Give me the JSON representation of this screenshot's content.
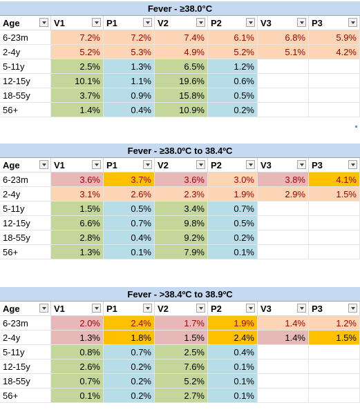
{
  "tables": [
    {
      "title": "Fever - ≥38.0°C",
      "headers": [
        "Age",
        "V1",
        "P1",
        "V2",
        "P2",
        "V3",
        "P3"
      ],
      "rows": [
        {
          "age": "6-23m",
          "values": [
            "7.2%",
            "7.2%",
            "7.4%",
            "6.1%",
            "6.8%",
            "5.9%"
          ],
          "fills": [
            "peach",
            "peach",
            "peach",
            "peach",
            "peach",
            "peach"
          ],
          "text": "red"
        },
        {
          "age": "2-4y",
          "values": [
            "5.2%",
            "5.3%",
            "4.9%",
            "5.2%",
            "5.1%",
            "4.2%"
          ],
          "fills": [
            "peach",
            "peach",
            "peach",
            "peach",
            "peach",
            "peach"
          ],
          "text": "red"
        },
        {
          "age": "5-11y",
          "values": [
            "2.5%",
            "1.3%",
            "6.5%",
            "1.2%",
            "",
            ""
          ],
          "fills": [
            "green",
            "blue",
            "green",
            "blue",
            "white",
            "white"
          ],
          "text": "black"
        },
        {
          "age": "12-15y",
          "values": [
            "10.1%",
            "1.1%",
            "19.6%",
            "0.6%",
            "",
            ""
          ],
          "fills": [
            "green",
            "blue",
            "green",
            "blue",
            "white",
            "white"
          ],
          "text": "black"
        },
        {
          "age": "18-55y",
          "values": [
            "3.7%",
            "0.9%",
            "15.8%",
            "0.5%",
            "",
            ""
          ],
          "fills": [
            "green",
            "blue",
            "green",
            "blue",
            "white",
            "white"
          ],
          "text": "black"
        },
        {
          "age": "56+",
          "values": [
            "1.4%",
            "0.4%",
            "10.9%",
            "0.2%",
            "",
            ""
          ],
          "fills": [
            "green",
            "blue",
            "green",
            "blue",
            "white",
            "white"
          ],
          "text": "black"
        }
      ]
    },
    {
      "title": "Fever - ≥38.0ºC to 38.4ºC",
      "headers": [
        "Age",
        "V1",
        "P1",
        "V2",
        "P2",
        "V3",
        "P3"
      ],
      "rows": [
        {
          "age": "6-23m",
          "values": [
            "3.6%",
            "3.7%",
            "3.6%",
            "3.0%",
            "3.8%",
            "4.1%"
          ],
          "fills": [
            "pink",
            "gold",
            "pink",
            "peach",
            "pink",
            "gold"
          ],
          "text": "red"
        },
        {
          "age": "2-4y",
          "values": [
            "3.1%",
            "2.6%",
            "2.3%",
            "1.9%",
            "2.9%",
            "1.5%"
          ],
          "fills": [
            "peach",
            "peach",
            "peach",
            "peach",
            "peach",
            "peach"
          ],
          "text": "red"
        },
        {
          "age": "5-11y",
          "values": [
            "1.5%",
            "0.5%",
            "3.4%",
            "0.7%",
            "",
            ""
          ],
          "fills": [
            "green",
            "blue",
            "green",
            "blue",
            "white",
            "white"
          ],
          "text": "black"
        },
        {
          "age": "12-15y",
          "values": [
            "6.6%",
            "0.7%",
            "9.8%",
            "0.5%",
            "",
            ""
          ],
          "fills": [
            "green",
            "blue",
            "green",
            "blue",
            "white",
            "white"
          ],
          "text": "black"
        },
        {
          "age": "18-55y",
          "values": [
            "2.8%",
            "0.4%",
            "9.2%",
            "0.2%",
            "",
            ""
          ],
          "fills": [
            "green",
            "blue",
            "green",
            "blue",
            "white",
            "white"
          ],
          "text": "black"
        },
        {
          "age": "56+",
          "values": [
            "1.3%",
            "0.1%",
            "7.9%",
            "0.1%",
            "",
            ""
          ],
          "fills": [
            "green",
            "blue",
            "green",
            "blue",
            "white",
            "white"
          ],
          "text": "black"
        }
      ]
    },
    {
      "title": "Fever - >38.4ºC to 38.9ºC",
      "headers": [
        "Age",
        "V1",
        "P1",
        "V2",
        "P2",
        "V3",
        "P3"
      ],
      "rows": [
        {
          "age": "6-23m",
          "values": [
            "2.0%",
            "2.4%",
            "1.7%",
            "1.9%",
            "1.4%",
            "1.2%"
          ],
          "fills": [
            "pink",
            "gold",
            "pink",
            "gold",
            "peach",
            "peach"
          ],
          "text": "red"
        },
        {
          "age": "2-4y",
          "values": [
            "1.3%",
            "1.8%",
            "1.5%",
            "2.4%",
            "1.4%",
            "1.5%"
          ],
          "fills": [
            "pink",
            "gold",
            "pink",
            "gold",
            "pink",
            "gold"
          ],
          "text": "black"
        },
        {
          "age": "5-11y",
          "values": [
            "0.8%",
            "0.7%",
            "2.5%",
            "0.4%",
            "",
            ""
          ],
          "fills": [
            "green",
            "blue",
            "green",
            "blue",
            "white",
            "white"
          ],
          "text": "black"
        },
        {
          "age": "12-15y",
          "values": [
            "2.6%",
            "0.2%",
            "7.6%",
            "0.1%",
            "",
            ""
          ],
          "fills": [
            "green",
            "blue",
            "green",
            "blue",
            "white",
            "white"
          ],
          "text": "black"
        },
        {
          "age": "18-55y",
          "values": [
            "0.7%",
            "0.2%",
            "5.2%",
            "0.1%",
            "",
            ""
          ],
          "fills": [
            "green",
            "blue",
            "green",
            "blue",
            "white",
            "white"
          ],
          "text": "black"
        },
        {
          "age": "56+",
          "values": [
            "0.1%",
            "0.2%",
            "2.7%",
            "0.1%",
            "",
            ""
          ],
          "fills": [
            "green",
            "blue",
            "green",
            "blue",
            "white",
            "white"
          ],
          "text": "black"
        }
      ]
    }
  ],
  "colors": {
    "title_bg": "#c5d9f1",
    "peach": "#fcd5b4",
    "pink": "#e6b8b7",
    "gold": "#ffc000",
    "green": "#c4d79b",
    "blue": "#b7dee8",
    "red_text": "#9c0006"
  }
}
